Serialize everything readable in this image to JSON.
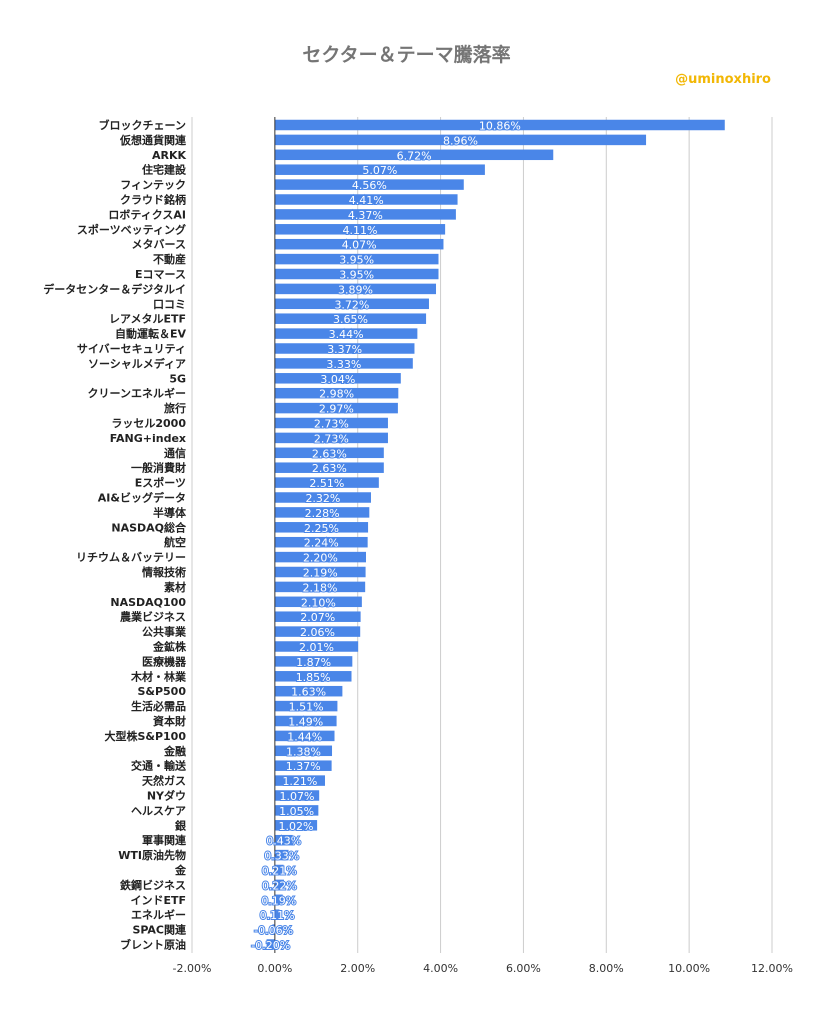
{
  "chart_data": {
    "type": "bar",
    "orientation": "horizontal",
    "title": "セクター＆テーマ騰落率",
    "watermark": "@uminoxhiro",
    "bar_color": "#4a86e8",
    "xlim": [
      -2,
      12
    ],
    "xticks": [
      "-2.00%",
      "0.00%",
      "2.00%",
      "4.00%",
      "6.00%",
      "8.00%",
      "10.00%",
      "12.00%"
    ],
    "grid": true,
    "legend": "none",
    "categories": [
      "ブロックチェーン",
      "仮想通貨関連",
      "ARKK",
      "住宅建設",
      "フィンテック",
      "クラウド銘柄",
      "ロボティクスAI",
      "スポーツベッティング",
      "メタバース",
      "不動産",
      "Eコマース",
      "データセンター＆デジタルイ",
      "口コミ",
      "レアメタルETF",
      "自動運転＆EV",
      "サイバーセキュリティ",
      "ソーシャルメディア",
      "5G",
      "クリーンエネルギー",
      "旅行",
      "ラッセル2000",
      "FANG+index",
      "通信",
      "一般消費財",
      "Eスポーツ",
      "AI&ビッグデータ",
      "半導体",
      "NASDAQ総合",
      "航空",
      "リチウム＆バッテリー",
      "情報技術",
      "素材",
      "NASDAQ100",
      "農業ビジネス",
      "公共事業",
      "金鉱株",
      "医療機器",
      "木材・林業",
      "S&P500",
      "生活必需品",
      "資本財",
      "大型株S&P100",
      "金融",
      "交通・輸送",
      "天然ガス",
      "NYダウ",
      "ヘルスケア",
      "銀",
      "軍事関連",
      "WTI原油先物",
      "金",
      "鉄鋼ビジネス",
      "インドETF",
      "エネルギー",
      "SPAC関連",
      "ブレント原油"
    ],
    "values": [
      10.86,
      8.96,
      6.72,
      5.07,
      4.56,
      4.41,
      4.37,
      4.11,
      4.07,
      3.95,
      3.95,
      3.89,
      3.72,
      3.65,
      3.44,
      3.37,
      3.33,
      3.04,
      2.98,
      2.97,
      2.73,
      2.73,
      2.63,
      2.63,
      2.51,
      2.32,
      2.28,
      2.25,
      2.24,
      2.2,
      2.19,
      2.18,
      2.1,
      2.07,
      2.06,
      2.01,
      1.87,
      1.85,
      1.63,
      1.51,
      1.49,
      1.44,
      1.38,
      1.37,
      1.21,
      1.07,
      1.05,
      1.02,
      0.43,
      0.33,
      0.21,
      0.22,
      0.19,
      0.11,
      -0.06,
      -0.2
    ],
    "value_labels": [
      "10.86%",
      "8.96%",
      "6.72%",
      "5.07%",
      "4.56%",
      "4.41%",
      "4.37%",
      "4.11%",
      "4.07%",
      "3.95%",
      "3.95%",
      "3.89%",
      "3.72%",
      "3.65%",
      "3.44%",
      "3.37%",
      "3.33%",
      "3.04%",
      "2.98%",
      "2.97%",
      "2.73%",
      "2.73%",
      "2.63%",
      "2.63%",
      "2.51%",
      "2.32%",
      "2.28%",
      "2.25%",
      "2.24%",
      "2.20%",
      "2.19%",
      "2.18%",
      "2.10%",
      "2.07%",
      "2.06%",
      "2.01%",
      "1.87%",
      "1.85%",
      "1.63%",
      "1.51%",
      "1.49%",
      "1.44%",
      "1.38%",
      "1.37%",
      "1.21%",
      "1.07%",
      "1.05%",
      "1.02%",
      "0.43%",
      "0.33%",
      "0.21%",
      "0.22%",
      "0.19%",
      "0.11%",
      "-0.06%",
      "-0.20%"
    ]
  }
}
